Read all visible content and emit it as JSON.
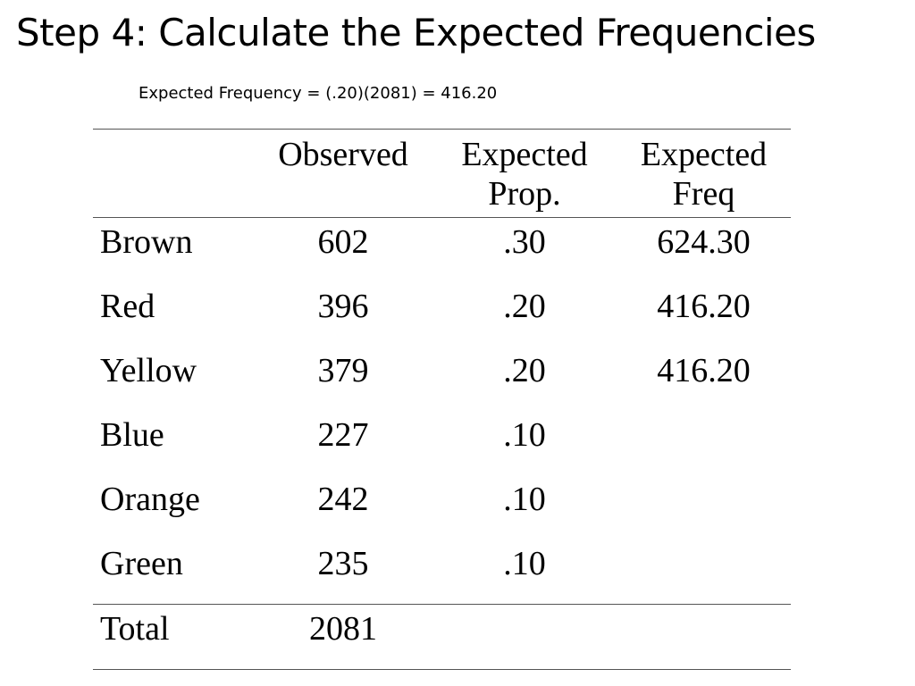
{
  "slide": {
    "title": "Step 4: Calculate the Expected Frequencies",
    "formula": "Expected Frequency = (.20)(2081) = 416.20"
  },
  "table": {
    "headers": {
      "label": "",
      "observed": "Observed",
      "expected_prop": [
        "Expected",
        "Prop."
      ],
      "expected_freq": [
        "Expected",
        "Freq"
      ]
    },
    "rows": [
      {
        "label": "Brown",
        "observed": "602",
        "expected_prop": ".30",
        "expected_freq": "624.30"
      },
      {
        "label": "Red",
        "observed": "396",
        "expected_prop": ".20",
        "expected_freq": "416.20"
      },
      {
        "label": "Yellow",
        "observed": "379",
        "expected_prop": ".20",
        "expected_freq": "416.20"
      },
      {
        "label": "Blue",
        "observed": "227",
        "expected_prop": ".10",
        "expected_freq": ""
      },
      {
        "label": "Orange",
        "observed": "242",
        "expected_prop": ".10",
        "expected_freq": ""
      },
      {
        "label": "Green",
        "observed": "235",
        "expected_prop": ".10",
        "expected_freq": ""
      }
    ],
    "total": {
      "label": "Total",
      "observed": "2081",
      "expected_prop": "",
      "expected_freq": ""
    }
  }
}
